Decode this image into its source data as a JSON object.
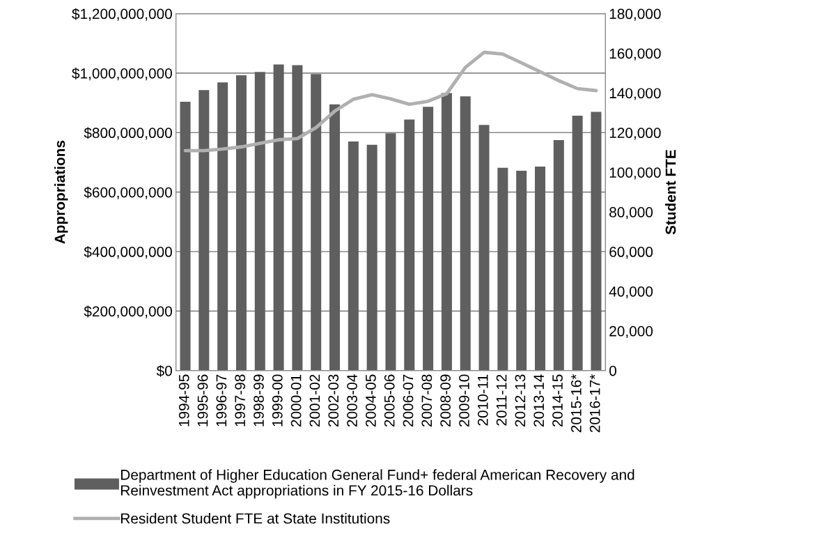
{
  "chart_data": {
    "type": "bar",
    "categories": [
      "1994-95",
      "1995-96",
      "1996-97",
      "1997-98",
      "1998-99",
      "1999-00",
      "2000-01",
      "2001-02",
      "2002-03",
      "2003-04",
      "2004-05",
      "2005-06",
      "2006-07",
      "2007-08",
      "2008-09",
      "2009-10",
      "2010-11",
      "2011-12",
      "2012-13",
      "2013-14",
      "2014-15",
      "2015-16*",
      "2016-17*"
    ],
    "series": [
      {
        "name": "Department of Higher Education General Fund+ federal American Recovery and Reinvestment Act appropriations in FY 2015-16 Dollars",
        "color": "#5f5f5f",
        "values": [
          904000000,
          943000000,
          969000000,
          993000000,
          1004000000,
          1029000000,
          1027000000,
          997000000,
          895000000,
          770000000,
          759000000,
          798000000,
          844000000,
          887000000,
          933000000,
          922000000,
          826000000,
          682000000,
          672000000,
          686000000,
          775000000,
          857000000,
          870000000
        ]
      },
      {
        "name": "Resident Student FTE at State Institutions",
        "type": "line",
        "axis": "y2",
        "color": "#b0b0b0",
        "values": [
          110900,
          110900,
          111700,
          112800,
          114600,
          116400,
          117000,
          122500,
          130800,
          136800,
          139100,
          137000,
          134300,
          135800,
          139600,
          152900,
          160500,
          159600,
          155200,
          150700,
          146200,
          142200,
          141200
        ]
      }
    ],
    "ylabel": "Appropriations",
    "y2label": "Student FTE",
    "ylim": [
      0,
      1200000000
    ],
    "yticks": [
      {
        "value": 0,
        "label": "$0"
      },
      {
        "value": 200000000,
        "label": "$200,000,000"
      },
      {
        "value": 400000000,
        "label": "$400,000,000"
      },
      {
        "value": 600000000,
        "label": "$600,000,000"
      },
      {
        "value": 800000000,
        "label": "$800,000,000"
      },
      {
        "value": 1000000000,
        "label": "$1,000,000,000"
      },
      {
        "value": 1200000000,
        "label": "$1,200,000,000"
      }
    ],
    "y2lim": [
      0,
      180000
    ],
    "y2ticks": [
      0,
      {
        "value": 20000,
        "label": "20,000"
      },
      {
        "value": 40000,
        "label": "40,000"
      },
      {
        "value": 60000,
        "label": "60,000"
      },
      {
        "value": 80000,
        "label": "80,000"
      },
      {
        "value": 100000,
        "label": "100,000"
      },
      {
        "value": 120000,
        "label": "120,000"
      },
      {
        "value": 140000,
        "label": "140,000"
      },
      {
        "value": 160000,
        "label": "160,000"
      },
      {
        "value": 180000,
        "label": "180,000"
      }
    ],
    "grid": "y",
    "legend": "bottom"
  }
}
